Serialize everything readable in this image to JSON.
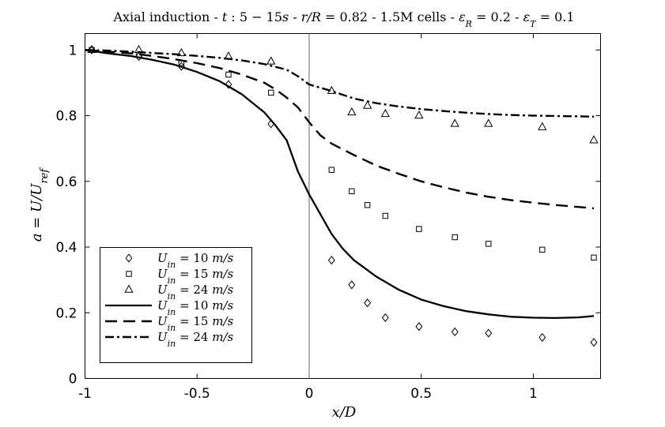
{
  "chart_data": {
    "type": "line",
    "title": "Axial induction - t : 5 − 15s - r/R = 0.82 - 1.5M cells - εR = 0.2 - εT = 0.1",
    "xlabel": "x/D",
    "ylabel": "a = U/Uref",
    "xlim": [
      -1,
      1.3
    ],
    "ylim": [
      0,
      1.05
    ],
    "xticks": [
      -1,
      -0.5,
      0,
      0.5,
      1
    ],
    "xtick_labels": [
      "-1",
      "-0.5",
      "0",
      "0.5",
      "1"
    ],
    "yticks": [
      0,
      0.2,
      0.4,
      0.6,
      0.8,
      1
    ],
    "ytick_labels": [
      "0",
      "0.2",
      "0.4",
      "0.6",
      "0.8",
      "1"
    ],
    "grid": false,
    "legend_position": "bottom-left",
    "vertical_reference_line_x": 0,
    "series": [
      {
        "name": "Uin = 10 m/s",
        "style": "markers",
        "marker": "diamond",
        "x": [
          -0.97,
          -0.76,
          -0.57,
          -0.36,
          -0.17,
          0.1,
          0.19,
          0.26,
          0.34,
          0.49,
          0.65,
          0.8,
          1.04,
          1.27
        ],
        "y": [
          1.0,
          0.98,
          0.95,
          0.895,
          0.775,
          0.36,
          0.285,
          0.23,
          0.185,
          0.158,
          0.142,
          0.138,
          0.125,
          0.11
        ]
      },
      {
        "name": "Uin = 15 m/s",
        "style": "markers",
        "marker": "square",
        "x": [
          -0.97,
          -0.76,
          -0.57,
          -0.36,
          -0.17,
          0.1,
          0.19,
          0.26,
          0.34,
          0.49,
          0.65,
          0.8,
          1.04,
          1.27
        ],
        "y": [
          1.0,
          0.985,
          0.96,
          0.925,
          0.87,
          0.635,
          0.57,
          0.528,
          0.495,
          0.455,
          0.43,
          0.41,
          0.392,
          0.368
        ]
      },
      {
        "name": "Uin = 24 m/s",
        "style": "markers",
        "marker": "triangle",
        "x": [
          -0.97,
          -0.76,
          -0.57,
          -0.36,
          -0.17,
          0.1,
          0.19,
          0.26,
          0.34,
          0.49,
          0.65,
          0.8,
          1.04,
          1.27
        ],
        "y": [
          1.0,
          1.0,
          0.99,
          0.98,
          0.965,
          0.875,
          0.81,
          0.83,
          0.805,
          0.8,
          0.775,
          0.775,
          0.765,
          0.725
        ]
      },
      {
        "name": "Uin = 10 m/s",
        "style": "solid",
        "x": [
          -1,
          -0.9,
          -0.8,
          -0.7,
          -0.6,
          -0.5,
          -0.4,
          -0.3,
          -0.2,
          -0.15,
          -0.1,
          -0.05,
          0,
          0.05,
          0.1,
          0.15,
          0.2,
          0.3,
          0.4,
          0.5,
          0.6,
          0.7,
          0.8,
          0.9,
          1.0,
          1.1,
          1.2,
          1.27
        ],
        "y": [
          1.0,
          0.99,
          0.982,
          0.97,
          0.955,
          0.933,
          0.905,
          0.865,
          0.81,
          0.77,
          0.725,
          0.63,
          0.56,
          0.5,
          0.44,
          0.395,
          0.36,
          0.31,
          0.27,
          0.24,
          0.22,
          0.205,
          0.195,
          0.188,
          0.185,
          0.184,
          0.186,
          0.19
        ]
      },
      {
        "name": "Uin = 15 m/s",
        "style": "dashed",
        "x": [
          -1,
          -0.9,
          -0.8,
          -0.7,
          -0.6,
          -0.5,
          -0.4,
          -0.3,
          -0.2,
          -0.15,
          -0.1,
          -0.05,
          0,
          0.05,
          0.1,
          0.2,
          0.3,
          0.4,
          0.5,
          0.6,
          0.7,
          0.8,
          0.9,
          1.0,
          1.1,
          1.2,
          1.27
        ],
        "y": [
          1.0,
          0.995,
          0.99,
          0.982,
          0.972,
          0.96,
          0.945,
          0.925,
          0.9,
          0.88,
          0.855,
          0.825,
          0.78,
          0.74,
          0.715,
          0.68,
          0.648,
          0.623,
          0.6,
          0.582,
          0.566,
          0.553,
          0.543,
          0.535,
          0.528,
          0.522,
          0.518
        ]
      },
      {
        "name": "Uin = 24 m/s",
        "style": "dash-dot",
        "x": [
          -1,
          -0.9,
          -0.8,
          -0.7,
          -0.6,
          -0.5,
          -0.4,
          -0.3,
          -0.2,
          -0.1,
          -0.05,
          0,
          0.05,
          0.1,
          0.2,
          0.3,
          0.4,
          0.5,
          0.6,
          0.7,
          0.8,
          0.9,
          1.0,
          1.1,
          1.2,
          1.27
        ],
        "y": [
          1.0,
          0.998,
          0.995,
          0.991,
          0.987,
          0.982,
          0.976,
          0.968,
          0.957,
          0.94,
          0.92,
          0.895,
          0.885,
          0.875,
          0.852,
          0.838,
          0.828,
          0.82,
          0.814,
          0.809,
          0.805,
          0.802,
          0.8,
          0.799,
          0.798,
          0.797
        ]
      }
    ]
  }
}
